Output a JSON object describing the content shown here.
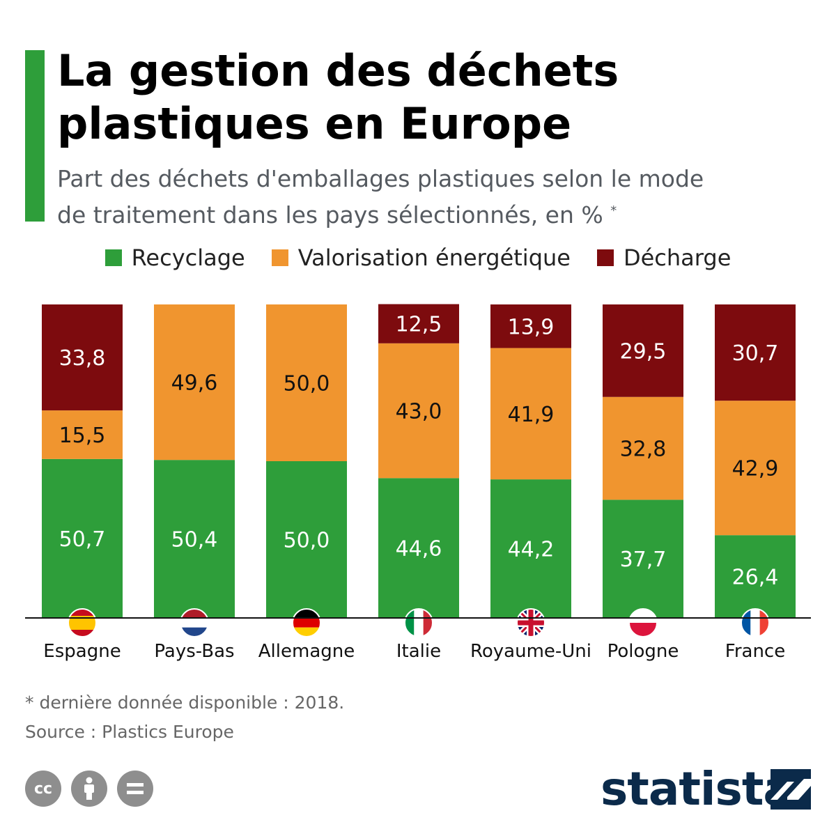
{
  "header": {
    "title_line1": "La gestion des déchets",
    "title_line2": "plastiques en Europe",
    "subtitle_line1": "Part des déchets d'emballages plastiques selon le mode",
    "subtitle_line2": "de traitement dans les pays sélectionnés, en %",
    "subtitle_mark": "*"
  },
  "colors": {
    "accent": "#2e9e3a",
    "recyclage": "#2e9e3a",
    "valorisation": "#f0952f",
    "decharge": "#7d0b0e"
  },
  "chart_data": {
    "type": "bar",
    "stacked": true,
    "categories": [
      "Espagne",
      "Pays-Bas",
      "Allemagne",
      "Italie",
      "Royaume-Uni",
      "Pologne",
      "France"
    ],
    "series": [
      {
        "name": "Recyclage",
        "values": [
          50.7,
          50.4,
          50.0,
          44.6,
          44.2,
          37.7,
          26.4
        ],
        "labels": [
          "50,7",
          "50,4",
          "50,0",
          "44,6",
          "44,2",
          "37,7",
          "26,4"
        ],
        "color": "#2e9e3a",
        "label_color": "#ffffff"
      },
      {
        "name": "Valorisation énergétique",
        "values": [
          15.5,
          49.6,
          50.0,
          43.0,
          41.9,
          32.8,
          42.9
        ],
        "labels": [
          "15,5",
          "49,6",
          "50,0",
          "43,0",
          "41,9",
          "32,8",
          "42,9"
        ],
        "color": "#f0952f",
        "label_color": "#111111"
      },
      {
        "name": "Décharge",
        "values": [
          33.8,
          0,
          0,
          12.5,
          13.9,
          29.5,
          30.7
        ],
        "labels": [
          "33,8",
          "",
          "",
          "12,5",
          "13,9",
          "29,5",
          "30,7"
        ],
        "color": "#7d0b0e",
        "label_color": "#ffffff"
      }
    ],
    "flags": [
      "spain-flag-icon",
      "netherlands-flag-icon",
      "germany-flag-icon",
      "italy-flag-icon",
      "uk-flag-icon",
      "poland-flag-icon",
      "france-flag-icon"
    ],
    "ylim": [
      0,
      100
    ],
    "grid": false,
    "legend": "top-center"
  },
  "footer": {
    "note": "* dernière donnée disponible : 2018.",
    "source": "Source : Plastics Europe",
    "cc_label": "cc",
    "brand": "statista"
  }
}
